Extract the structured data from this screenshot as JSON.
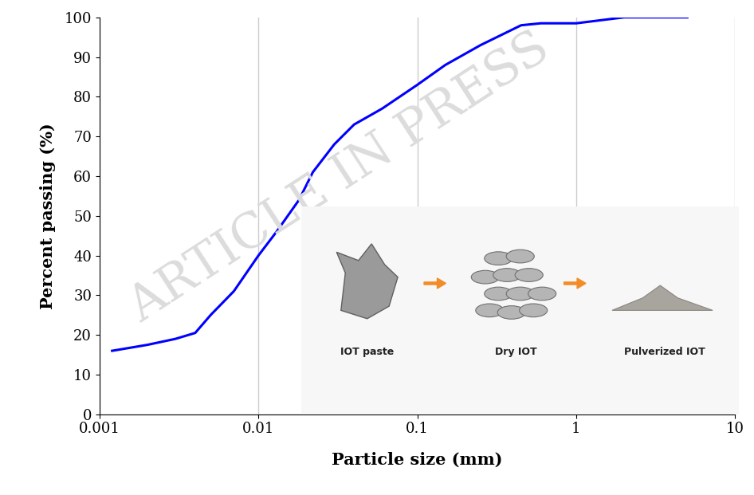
{
  "chart_data": {
    "type": "line",
    "x_label": "Particle size (mm)",
    "y_label": "Percent passing (%)",
    "x": [
      0.0012,
      0.002,
      0.003,
      0.004,
      0.005,
      0.007,
      0.01,
      0.013,
      0.018,
      0.022,
      0.03,
      0.04,
      0.06,
      0.1,
      0.15,
      0.25,
      0.45,
      0.6,
      1,
      2,
      5
    ],
    "values": [
      16,
      17.5,
      19,
      20.5,
      25,
      31,
      40,
      46,
      54,
      61,
      68,
      73,
      77,
      83,
      88,
      93,
      98,
      98.5,
      98.5,
      100,
      100
    ],
    "color": "#0000ff",
    "log": "x",
    "xlim": [
      0.001,
      10
    ],
    "xticks": [
      0.001,
      0.01,
      0.1,
      1,
      10
    ],
    "ylim": [
      0,
      100
    ],
    "yticks": [
      0,
      10,
      20,
      30,
      40,
      50,
      60,
      70,
      80,
      90,
      100
    ],
    "grid": true,
    "annotations": [
      "IOT paste",
      "Dry IOT",
      "Pulverized IOT"
    ],
    "watermark": "ARTICLE IN PRESS"
  }
}
